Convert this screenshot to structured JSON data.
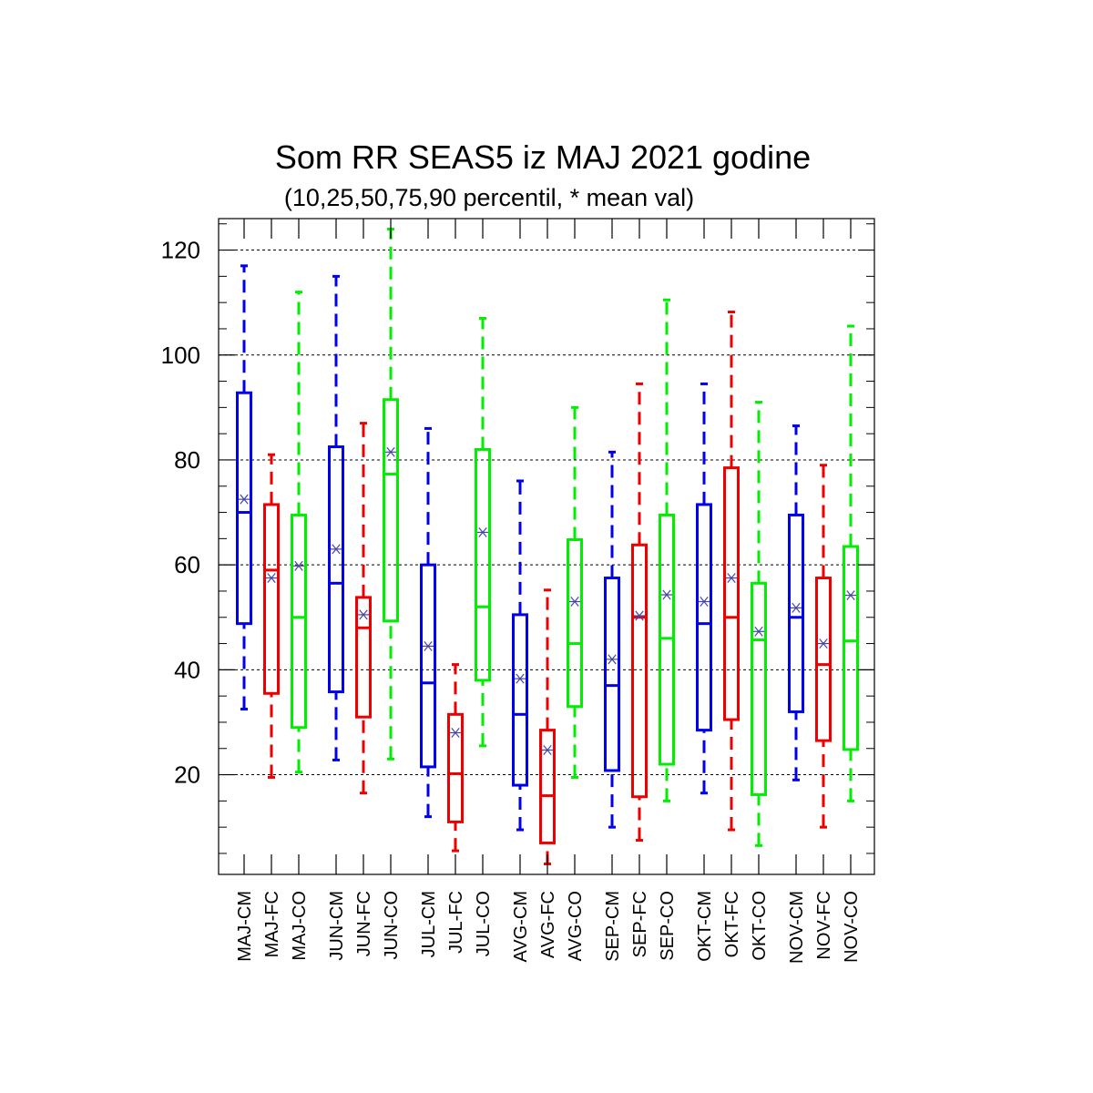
{
  "chart_data": {
    "type": "box",
    "title": "Som RR SEAS5 iz MAJ 2021 godine",
    "subtitle": "(10,25,50,75,90 percentil, * mean val)",
    "ylim": [
      1,
      126
    ],
    "yticks": [
      "20",
      "40",
      "60",
      "80",
      "100",
      "120"
    ],
    "grid": "horizontal dashed",
    "colors": {
      "CM": "#0000ee",
      "FC": "#ee0000",
      "CO": "#00ee00",
      "mean_marker": "#4444aa"
    },
    "categories": [
      {
        "label": "MAJ-CM",
        "group": "CM",
        "p10": 32.5,
        "p25": 48.8,
        "p50": 70,
        "p75": 92.8,
        "p90": 117,
        "mean": 72.5
      },
      {
        "label": "MAJ-FC",
        "group": "FC",
        "p10": 19.5,
        "p25": 35.5,
        "p50": 59,
        "p75": 71.5,
        "p90": 81,
        "mean": 57.5
      },
      {
        "label": "MAJ-CO",
        "group": "CO",
        "p10": 20.5,
        "p25": 29,
        "p50": 50,
        "p75": 69.5,
        "p90": 112,
        "mean": 59.8
      },
      {
        "label": "JUN-CM",
        "group": "CM",
        "p10": 22.8,
        "p25": 35.8,
        "p50": 56.5,
        "p75": 82.5,
        "p90": 115,
        "mean": 63
      },
      {
        "label": "JUN-FC",
        "group": "FC",
        "p10": 16.5,
        "p25": 31,
        "p50": 48,
        "p75": 53.8,
        "p90": 87,
        "mean": 50.5
      },
      {
        "label": "JUN-CO",
        "group": "CO",
        "p10": 23,
        "p25": 49.3,
        "p50": 77.3,
        "p75": 91.5,
        "p90": 124,
        "mean": 81.5
      },
      {
        "label": "JUL-CM",
        "group": "CM",
        "p10": 12,
        "p25": 21.5,
        "p50": 37.5,
        "p75": 60,
        "p90": 86,
        "mean": 44.5
      },
      {
        "label": "JUL-FC",
        "group": "FC",
        "p10": 5.5,
        "p25": 11,
        "p50": 20.2,
        "p75": 31.5,
        "p90": 41,
        "mean": 28
      },
      {
        "label": "JUL-CO",
        "group": "CO",
        "p10": 25.5,
        "p25": 38,
        "p50": 52,
        "p75": 82,
        "p90": 107,
        "mean": 66.2
      },
      {
        "label": "AVG-CM",
        "group": "CM",
        "p10": 9.5,
        "p25": 18,
        "p50": 31.5,
        "p75": 50.5,
        "p90": 76,
        "mean": 38.3
      },
      {
        "label": "AVG-FC",
        "group": "FC",
        "p10": 3,
        "p25": 7,
        "p50": 16,
        "p75": 28.5,
        "p90": 55.2,
        "mean": 24.7
      },
      {
        "label": "AVG-CO",
        "group": "CO",
        "p10": 19.5,
        "p25": 33,
        "p50": 45,
        "p75": 64.8,
        "p90": 90,
        "mean": 53
      },
      {
        "label": "SEP-CM",
        "group": "CM",
        "p10": 10,
        "p25": 20.8,
        "p50": 37,
        "p75": 57.5,
        "p90": 81.5,
        "mean": 42
      },
      {
        "label": "SEP-FC",
        "group": "FC",
        "p10": 7.5,
        "p25": 15.8,
        "p50": 50,
        "p75": 63.8,
        "p90": 94.5,
        "mean": 50.3
      },
      {
        "label": "SEP-CO",
        "group": "CO",
        "p10": 15,
        "p25": 22,
        "p50": 46,
        "p75": 69.5,
        "p90": 110.5,
        "mean": 54.3
      },
      {
        "label": "OKT-CM",
        "group": "CM",
        "p10": 16.5,
        "p25": 28.5,
        "p50": 48.8,
        "p75": 71.5,
        "p90": 94.5,
        "mean": 53
      },
      {
        "label": "OKT-FC",
        "group": "FC",
        "p10": 9.5,
        "p25": 30.5,
        "p50": 50,
        "p75": 78.5,
        "p90": 108.2,
        "mean": 57.5
      },
      {
        "label": "OKT-CO",
        "group": "CO",
        "p10": 6.5,
        "p25": 16.2,
        "p50": 45.7,
        "p75": 56.5,
        "p90": 91,
        "mean": 47.3
      },
      {
        "label": "NOV-CM",
        "group": "CM",
        "p10": 19,
        "p25": 32,
        "p50": 50,
        "p75": 69.5,
        "p90": 86.5,
        "mean": 51.8
      },
      {
        "label": "NOV-FC",
        "group": "FC",
        "p10": 10,
        "p25": 26.5,
        "p50": 41,
        "p75": 57.5,
        "p90": 79,
        "mean": 45
      },
      {
        "label": "NOV-CO",
        "group": "CO",
        "p10": 15,
        "p25": 24.8,
        "p50": 45.5,
        "p75": 63.5,
        "p90": 105.5,
        "mean": 54.2
      }
    ]
  }
}
